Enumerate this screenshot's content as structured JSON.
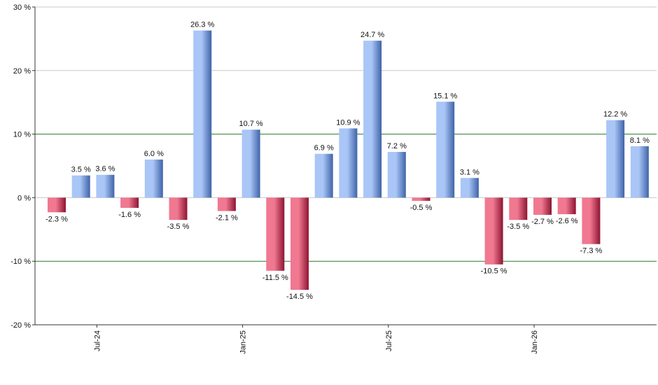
{
  "chart_data": {
    "type": "bar",
    "y_unit_suffix": " %",
    "ylim": [
      -20,
      30
    ],
    "yticks": [
      -20,
      -10,
      0,
      10,
      20,
      30
    ],
    "x_tick_labels": [
      {
        "label": "Jul-24",
        "index": 2
      },
      {
        "label": "Jan-25",
        "index": 8
      },
      {
        "label": "Jul-25",
        "index": 14
      },
      {
        "label": "Jan-26",
        "index": 20
      }
    ],
    "values": [
      -2.3,
      3.5,
      3.6,
      -1.6,
      6.0,
      -3.5,
      26.3,
      -2.1,
      10.7,
      -11.5,
      -14.5,
      6.9,
      10.9,
      24.7,
      7.2,
      -0.5,
      15.1,
      3.1,
      -10.5,
      -3.5,
      -2.7,
      -2.6,
      -7.3,
      12.2,
      8.1
    ],
    "value_labels": [
      "-2.3 %",
      "3.5 %",
      "3.6 %",
      "-1.6 %",
      "6.0 %",
      "-3.5 %",
      "26.3 %",
      "-2.1 %",
      "10.7 %",
      "-11.5 %",
      "-14.5 %",
      "6.9 %",
      "10.9 %",
      "24.7 %",
      "7.2 %",
      "-0.5 %",
      "15.1 %",
      "3.1 %",
      "-10.5 %",
      "-3.5 %",
      "-2.7 %",
      "-2.6 %",
      "-7.3 %",
      "12.2 %",
      "8.1 %"
    ],
    "reference_lines": [
      10,
      -10
    ],
    "colors": {
      "positive_dark": "#3f63a8",
      "positive_light": "#a9c6f7",
      "negative_dark": "#8e1432",
      "negative_light": "#f07890",
      "grid": "#c8c8c8",
      "reference": "#2a7a2a",
      "axis": "#333333"
    }
  }
}
